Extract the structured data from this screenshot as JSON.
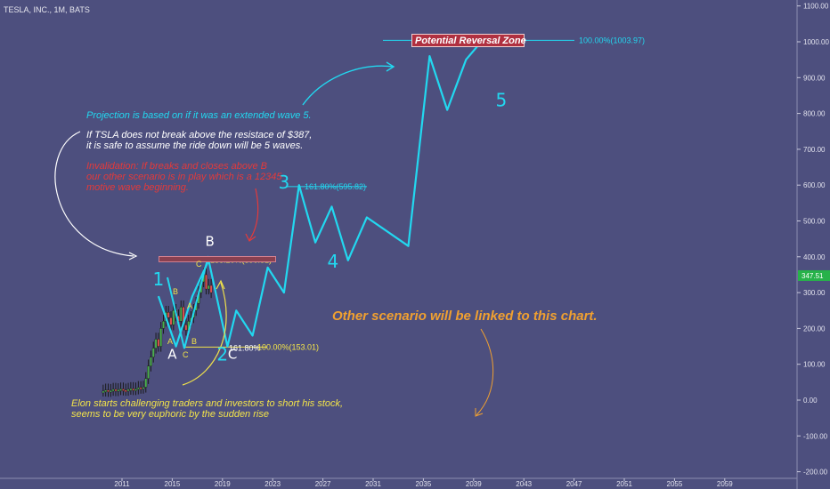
{
  "header": {
    "title": "TESLA, INC., 1M, BATS"
  },
  "chart_data": {
    "type": "line",
    "title": "TESLA, INC., 1M, BATS",
    "y_ticks": [
      "1100.00",
      "1000.00",
      "900.00",
      "800.00",
      "700.00",
      "600.00",
      "500.00",
      "400.00",
      "300.00",
      "200.00",
      "100.00",
      "0.00",
      "-100.00",
      "-200.00"
    ],
    "x_ticks": [
      "2011",
      "2015",
      "2019",
      "2023",
      "2027",
      "2031",
      "2035",
      "2039",
      "2043",
      "2047",
      "2051",
      "2055",
      "2059"
    ],
    "ylim": [
      -200,
      1100
    ],
    "last_price": "347.51",
    "candles": {
      "x": [
        2009.5,
        2009.7,
        2009.9,
        2010.1,
        2010.3,
        2010.5,
        2010.7,
        2010.9,
        2011.1,
        2011.3,
        2011.5,
        2011.7,
        2011.9,
        2012.1,
        2012.3,
        2012.5,
        2012.7,
        2012.9,
        2013.1,
        2013.3,
        2013.5,
        2013.7,
        2013.9,
        2014.1,
        2014.3,
        2014.5,
        2014.7,
        2014.9,
        2015.1,
        2015.3,
        2015.5,
        2015.7,
        2015.9,
        2016.1,
        2016.3,
        2016.5,
        2016.7,
        2016.9,
        2017.1,
        2017.3,
        2017.5,
        2017.7,
        2017.9,
        2018.1
      ],
      "y": [
        25,
        28,
        24,
        27,
        30,
        26,
        29,
        31,
        28,
        27,
        30,
        32,
        29,
        31,
        35,
        33,
        36,
        60,
        95,
        120,
        145,
        170,
        150,
        200,
        220,
        245,
        230,
        210,
        250,
        235,
        220,
        260,
        210,
        195,
        220,
        230,
        250,
        270,
        300,
        330,
        350,
        310,
        320,
        300
      ]
    },
    "wave_path": {
      "x": [
        2013.9,
        2015.3,
        2016.6,
        2017.9,
        2019.4,
        2020.1,
        2021.4,
        2022.6,
        2023.9,
        2025.1,
        2026.4,
        2027.7,
        2029.0,
        2030.5,
        2033.8,
        2035.5,
        2036.9,
        2038.4,
        2039.7
      ],
      "y": [
        290,
        150,
        290,
        390,
        150,
        250,
        180,
        370,
        300,
        600,
        440,
        540,
        390,
        510,
        430,
        960,
        810,
        950,
        1003.97
      ]
    },
    "fib_levels": [
      {
        "label": "100.00%(1003.97)",
        "value": 1003.97
      },
      {
        "label": "161.80%(595.82)",
        "value": 595.82
      },
      {
        "label": "138.20%(390.51)",
        "value": 390.51
      },
      {
        "label": "161.80%",
        "value": 150
      },
      {
        "label": "100.00%(153.01)",
        "value": 153.01
      }
    ],
    "wave_labels": [
      {
        "text": "1",
        "x": 2013.9,
        "y": 320
      },
      {
        "text": "2",
        "x": 2019.0,
        "y": 110
      },
      {
        "text": "3",
        "x": 2023.9,
        "y": 590
      },
      {
        "text": "4",
        "x": 2027.8,
        "y": 370
      },
      {
        "text": "5",
        "x": 2041.2,
        "y": 820
      },
      {
        "text": "A",
        "x": 2015.0,
        "y": 115
      },
      {
        "text": "B",
        "x": 2018.0,
        "y": 430
      },
      {
        "text": "C",
        "x": 2019.8,
        "y": 115
      }
    ]
  },
  "labels": {
    "zone": "Potential Reversal Zone",
    "fib_zone_c": "C",
    "small_b_top": "B",
    "small_a_mid": "A",
    "small_a_low": "A",
    "small_c_low": "C",
    "small_b_low": "B"
  },
  "annotations": {
    "projection": "Projection is based on if it was an extended wave 5.",
    "resistance_1": "If TSLA does not break above the resistace of $387,",
    "resistance_2": "it is safe to assume the ride down will be 5 waves.",
    "invalid_1": "Invalidation: If breaks and closes above B",
    "invalid_2": "our other scenario is in play which is a 12345",
    "invalid_3": "motive wave beginning.",
    "other": "Other scenario will be linked to this chart.",
    "elon_1": "Elon starts challenging traders and investors to short his stock,",
    "elon_2": "seems to be very euphoric by the sudden rise"
  },
  "colors": {
    "background": "#4d4f7e",
    "wave": "#22d8f0",
    "white": "#ffffff",
    "yellow": "#f2e34a",
    "red": "#e43a3a",
    "orange": "#f0a030",
    "price_tag": "#27b24a",
    "zone": "#b03040"
  }
}
